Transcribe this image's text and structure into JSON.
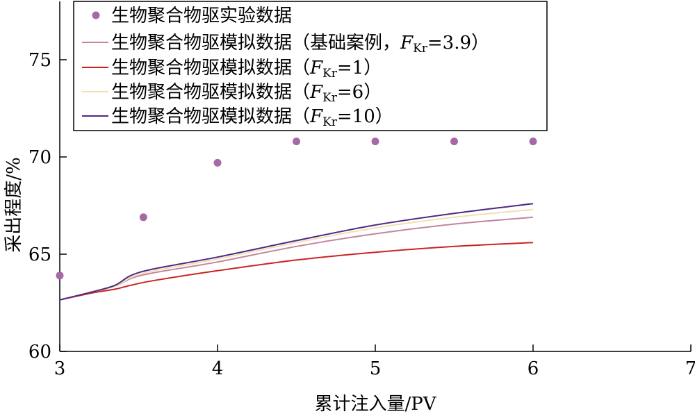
{
  "chart_data": {
    "type": "line",
    "xlabel": "累计注入量/PV",
    "ylabel": "采出程度/%",
    "xlim": [
      3,
      7
    ],
    "ylim": [
      60,
      78
    ],
    "xticks": [
      3,
      4,
      5,
      6,
      7
    ],
    "yticks": [
      60,
      65,
      70,
      75
    ],
    "grid": false,
    "legend_position": "top-left",
    "scatter": {
      "name": "生物聚合物驱实验数据",
      "color": "#a56aa6",
      "x": [
        3.0,
        3.53,
        4.0,
        4.5,
        5.0,
        5.5,
        6.0
      ],
      "y": [
        63.9,
        66.9,
        69.7,
        70.8,
        70.8,
        70.8,
        70.8
      ]
    },
    "series": [
      {
        "name": "生物聚合物驱模拟数据（基础案例，",
        "fkr": "=3.9）",
        "color": "#c5849f",
        "x": [
          3.0,
          3.2,
          3.35,
          3.45,
          3.6,
          4.0,
          4.5,
          5.0,
          5.5,
          6.0
        ],
        "y": [
          62.65,
          63.05,
          63.35,
          63.75,
          64.05,
          64.6,
          65.4,
          66.05,
          66.55,
          66.9
        ]
      },
      {
        "name": "生物聚合物驱模拟数据（",
        "fkr": "=1）",
        "color": "#cc2222",
        "x": [
          3.0,
          3.2,
          3.35,
          3.45,
          3.6,
          4.0,
          4.5,
          5.0,
          5.5,
          6.0
        ],
        "y": [
          62.65,
          63.0,
          63.2,
          63.4,
          63.65,
          64.15,
          64.7,
          65.1,
          65.4,
          65.6
        ]
      },
      {
        "name": "生物聚合物驱模拟数据（",
        "fkr": "=6）",
        "color": "#f3dfb0",
        "x": [
          3.0,
          3.2,
          3.35,
          3.45,
          3.6,
          4.0,
          4.5,
          5.0,
          5.5,
          6.0
        ],
        "y": [
          62.65,
          63.05,
          63.35,
          63.8,
          64.15,
          64.75,
          65.6,
          66.35,
          66.9,
          67.3
        ]
      },
      {
        "name": "生物聚合物驱模拟数据（",
        "fkr": "=10）",
        "color": "#4b2a84",
        "x": [
          3.0,
          3.2,
          3.35,
          3.45,
          3.6,
          4.0,
          4.5,
          5.0,
          5.5,
          6.0
        ],
        "y": [
          62.65,
          63.05,
          63.4,
          63.9,
          64.25,
          64.85,
          65.7,
          66.5,
          67.1,
          67.6
        ]
      }
    ]
  },
  "legend": {
    "f_letter": "F",
    "f_sub": "Kr"
  }
}
